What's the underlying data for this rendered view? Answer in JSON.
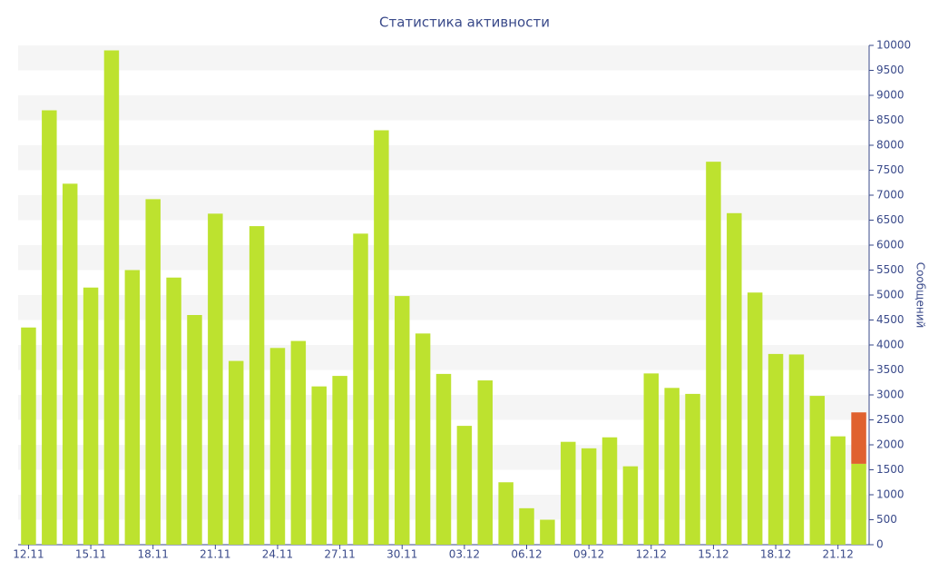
{
  "chart_data": {
    "type": "stacked_bar",
    "title": "Статистика активности",
    "y_axis_label": "Сообщений",
    "categories": [
      "12.11",
      null,
      null,
      "15.11",
      null,
      null,
      "18.11",
      null,
      null,
      "21.11",
      null,
      null,
      "24.11",
      null,
      null,
      "27.11",
      null,
      null,
      "30.11",
      null,
      null,
      "03.12",
      null,
      null,
      "06.12",
      null,
      null,
      "09.12",
      null,
      null,
      "12.12",
      null,
      null,
      "15.12",
      null,
      null,
      "18.12",
      null,
      null,
      "21.12",
      null
    ],
    "series": [
      {
        "color": "#bde22f",
        "values": [
          4350,
          8700,
          7230,
          5150,
          9900,
          5500,
          6920,
          5350,
          4600,
          6630,
          3680,
          6380,
          3940,
          4080,
          3170,
          3380,
          6230,
          8300,
          4980,
          4230,
          3420,
          2380,
          3290,
          1250,
          730,
          500,
          2060,
          1930,
          2150,
          1570,
          3430,
          3140,
          3020,
          7670,
          6640,
          5050,
          3820,
          3810,
          2980,
          2170,
          1620
        ]
      },
      {
        "color": "#e0612f",
        "values": [
          null,
          null,
          null,
          null,
          null,
          null,
          null,
          null,
          null,
          null,
          null,
          null,
          null,
          null,
          null,
          null,
          null,
          null,
          null,
          null,
          null,
          null,
          null,
          null,
          null,
          null,
          null,
          null,
          null,
          null,
          null,
          null,
          null,
          null,
          null,
          null,
          null,
          null,
          null,
          null,
          1030
        ]
      }
    ],
    "ylim": [
      0,
      10000
    ],
    "yticks": [
      0,
      500,
      1000,
      1500,
      2000,
      2500,
      3000,
      3500,
      4000,
      4500,
      5000,
      5500,
      6000,
      6500,
      7000,
      7500,
      8000,
      8500,
      9000,
      9500,
      10000
    ],
    "grid": true,
    "y_axis_side": "right"
  }
}
